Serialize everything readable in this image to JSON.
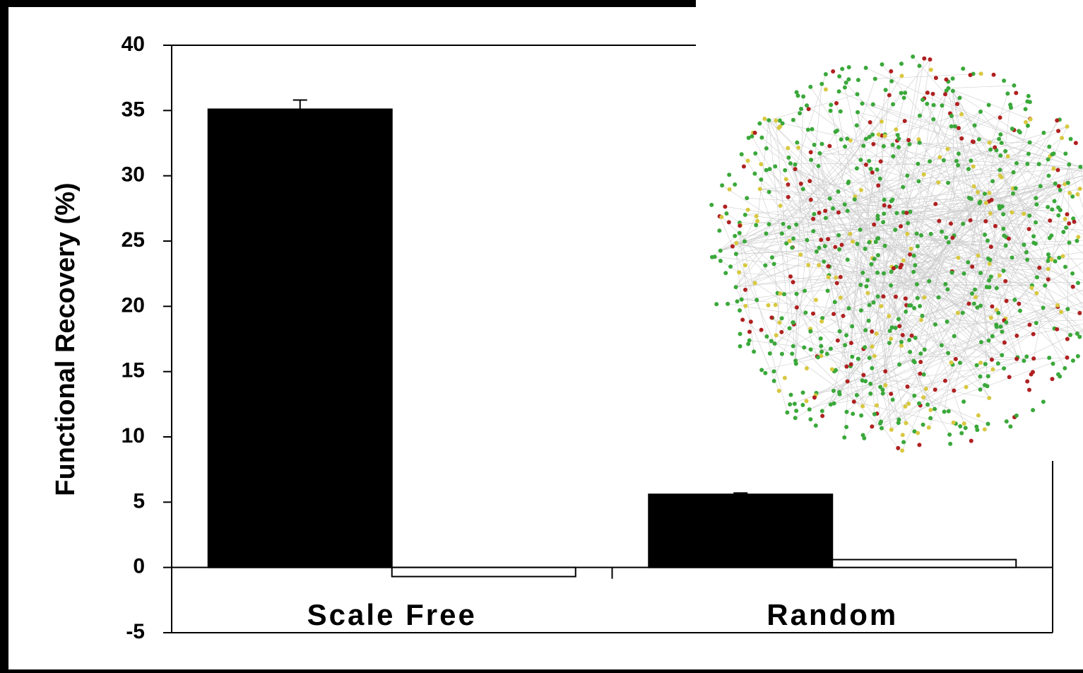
{
  "chart_data": {
    "type": "bar",
    "y_label": "Functional Recovery (%)",
    "categories": [
      "Scale Free",
      "Random"
    ],
    "series": [
      {
        "color": "#000000",
        "values": [
          35.1,
          5.6
        ],
        "errors": [
          0.7,
          0.1
        ]
      },
      {
        "color": "#ffffff",
        "values": [
          -0.7,
          0.6
        ]
      }
    ],
    "ylim": [
      -5,
      40
    ],
    "yticks": [
      -5,
      0,
      5,
      10,
      15,
      20,
      25,
      30,
      35,
      40
    ]
  }
}
